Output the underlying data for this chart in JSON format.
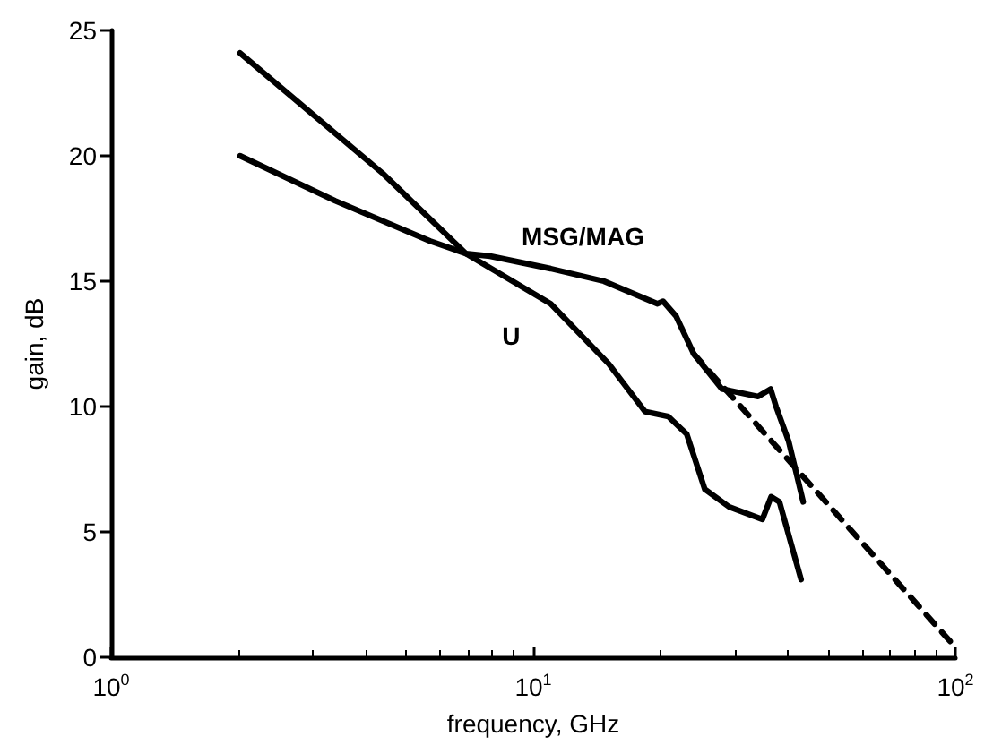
{
  "chart_data": {
    "type": "line",
    "xlabel": "frequency, GHz",
    "ylabel": "gain, dB",
    "log": "x",
    "xlim": [
      1,
      100
    ],
    "xticks": [
      {
        "value": 1,
        "label": "10$^{0}$"
      },
      {
        "value": 10,
        "label": "10$^{1}$"
      },
      {
        "value": 100,
        "label": "10$^{2}$"
      }
    ],
    "ylim": [
      0,
      25
    ],
    "yticks": [
      0,
      5,
      10,
      15,
      20,
      25
    ],
    "grid": false,
    "marker": "none",
    "series": [
      {
        "name": "MSG/MAG",
        "color": "#000000",
        "line_style": "solid",
        "x": [
          2.02,
          3.4,
          5.7,
          6.93,
          7.9,
          11,
          14.7,
          19.7,
          20.3,
          21.8,
          24,
          28,
          34.1,
          36.5,
          37.6,
          40.3,
          43.6
        ],
        "values": [
          20.0,
          18.2,
          16.6,
          16.1,
          16.0,
          15.5,
          15.0,
          14.1,
          14.2,
          13.6,
          12.1,
          10.7,
          10.4,
          10.7,
          10.0,
          8.6,
          6.2
        ]
      },
      {
        "name": "U",
        "color": "#000000",
        "line_style": "solid",
        "x": [
          2.02,
          4.4,
          6.93,
          11,
          15.1,
          18.4,
          20.9,
          23.1,
          25.5,
          29.1,
          34.9,
          36.6,
          38.3,
          43.1
        ],
        "values": [
          24.1,
          19.3,
          16.1,
          14.1,
          11.7,
          9.8,
          9.6,
          8.9,
          6.7,
          6.0,
          5.5,
          6.4,
          6.2,
          3.1
        ]
      },
      {
        "color": "#000000",
        "line_style": "dashed",
        "x": [
          24,
          100
        ],
        "values": [
          12.1,
          0.4
        ]
      }
    ]
  }
}
